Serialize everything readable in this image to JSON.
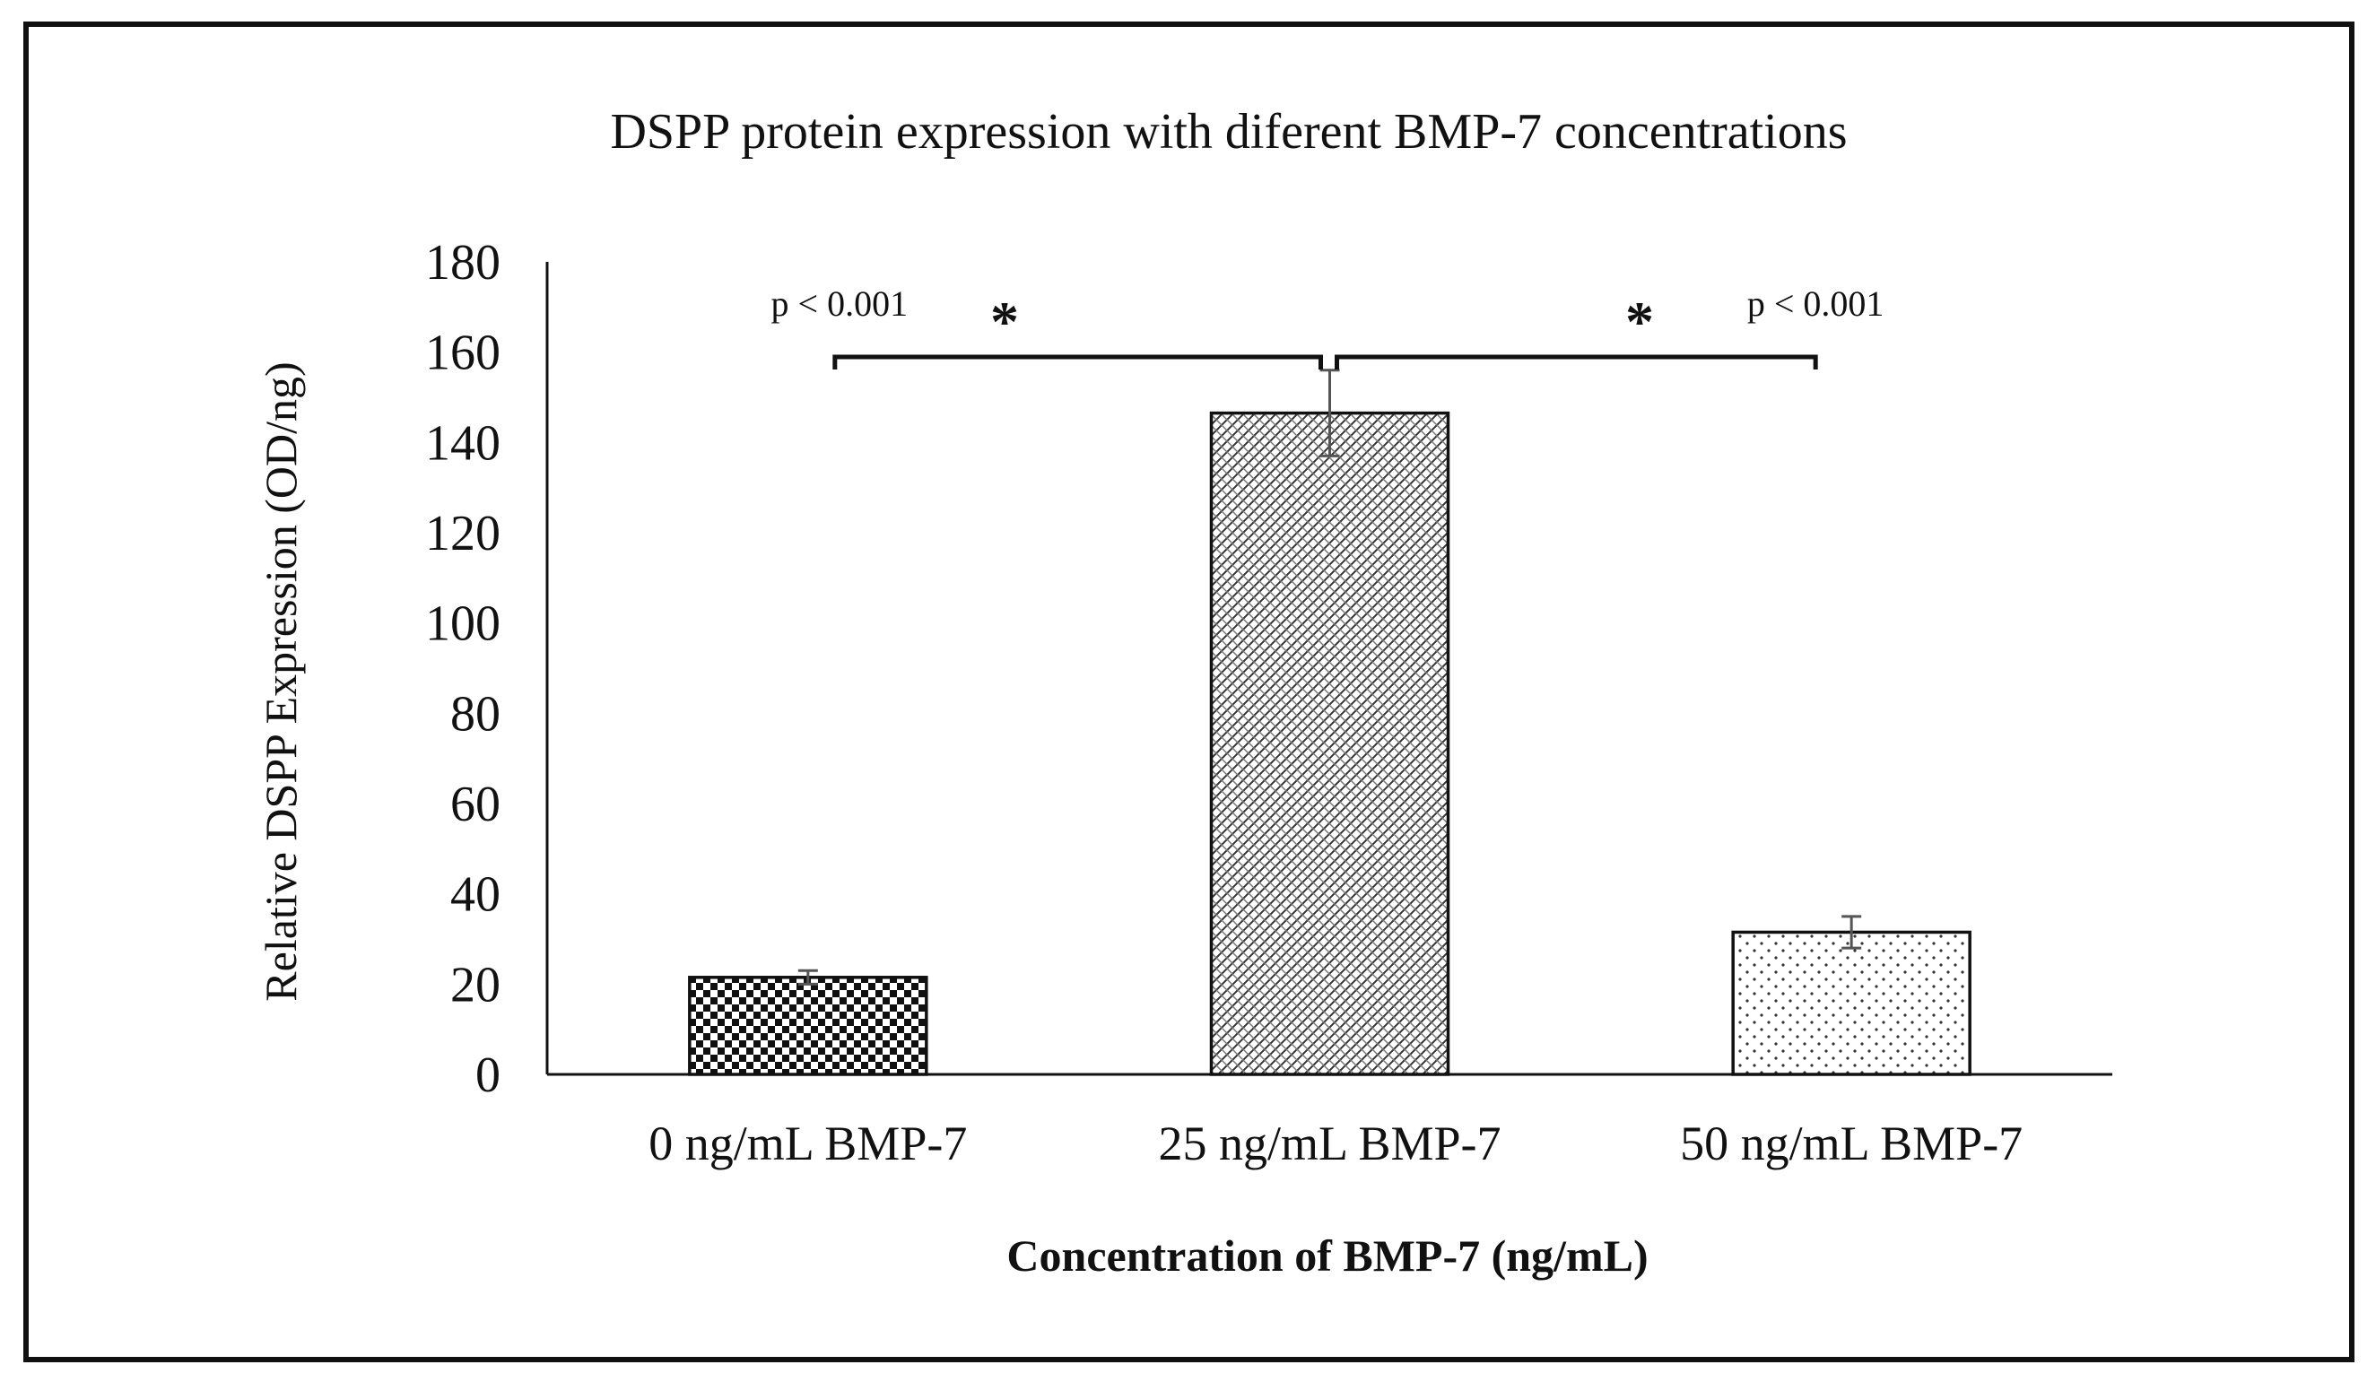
{
  "chart_data": {
    "type": "bar",
    "title": "DSPP protein expression with diferent BMP-7 concentrations",
    "xlabel": "Concentration of BMP-7 (ng/mL)",
    "ylabel": "Relative DSPP Expression (OD/ng)",
    "ylim": [
      0,
      180
    ],
    "yticks": [
      "0",
      "20",
      "40",
      "60",
      "80",
      "100",
      "120",
      "140",
      "160",
      "180"
    ],
    "categories": [
      "0 ng/mL BMP-7",
      "25 ng/mL BMP-7",
      "50 ng/mL BMP-7"
    ],
    "values": [
      21.5,
      146.5,
      31.5
    ],
    "errors": [
      1.5,
      9.5,
      3.5
    ],
    "patterns": [
      "checker",
      "crosshatch",
      "dots"
    ],
    "grid": false,
    "annotations": [
      {
        "between": [
          0,
          1
        ],
        "text": "p < 0.001",
        "marker": "*"
      },
      {
        "between": [
          1,
          2
        ],
        "text": "p < 0.001",
        "marker": "*"
      }
    ]
  }
}
